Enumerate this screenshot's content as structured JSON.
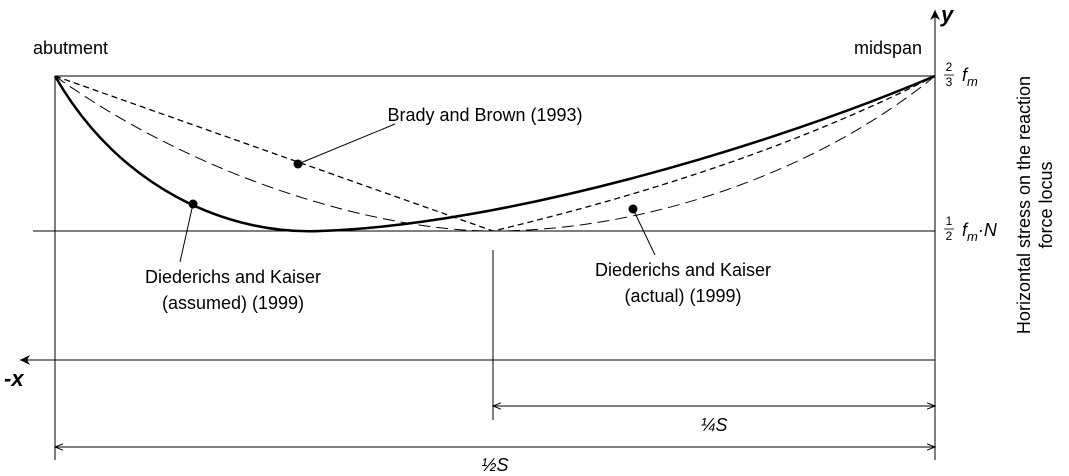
{
  "labels": {
    "abutment": "abutment",
    "midspan": "midspan",
    "y_axis": "y",
    "x_axis": "-x",
    "y_axis_title": [
      "Horizontal stress on the reaction",
      "force locus"
    ]
  },
  "levels": [
    {
      "numerator": "2",
      "denominator": "3",
      "symbol": "f",
      "subscript": "m"
    },
    {
      "numerator": "1",
      "denominator": "2",
      "symbol": "f",
      "subscript": "m",
      "suffix": "·N"
    }
  ],
  "curves": [
    {
      "label": [
        "Brady and Brown (1993)"
      ]
    },
    {
      "label": [
        "Diederichs and Kaiser",
        "(assumed) (1999)"
      ]
    },
    {
      "label": [
        "Diederichs and Kaiser",
        "(actual) (1999)"
      ]
    }
  ],
  "dimensions": [
    {
      "label": "¼S"
    },
    {
      "label": "½S"
    }
  ]
}
